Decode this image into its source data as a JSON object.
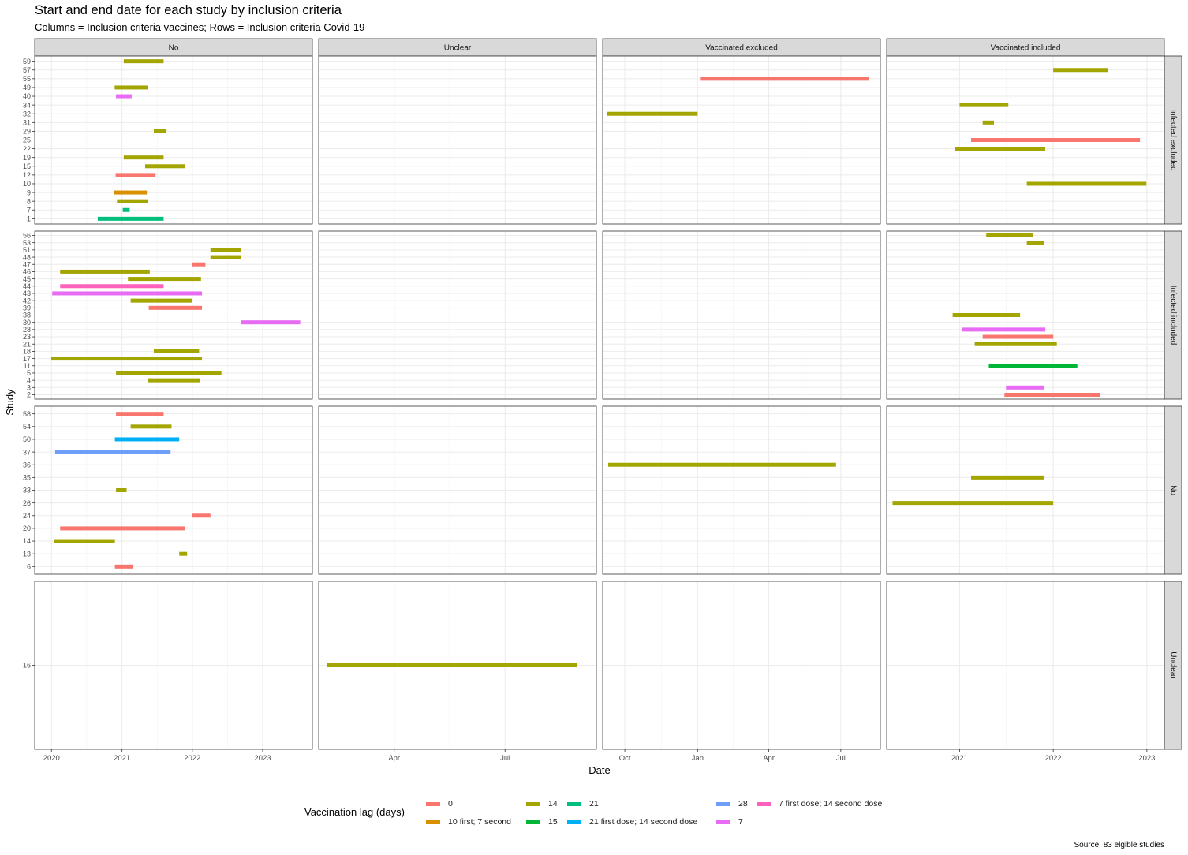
{
  "title": "Start and end date for each study by inclusion criteria",
  "subtitle": "Columns = Inclusion criteria vaccines; Rows = Inclusion criteria Covid-19",
  "caption": "Source: 83 elgible studies",
  "colors": {
    "0": "#F8766D",
    "10 first; 7 second": "#D89000",
    "14": "#A3A500",
    "15": "#00B636",
    "21": "#00BF7D",
    "21 first dose; 14 second dose": "#00B0F6",
    "28": "#6D9EF8",
    "7": "#E76BF3",
    "7 first dose; 14 second dose": "#FF62BC"
  },
  "chart_data": {
    "type": "timeline",
    "xlabel": "Date",
    "ylabel": "Study",
    "legend": {
      "title": "Vaccination lag (days)",
      "position": "bottom",
      "entries": [
        "0",
        "10 first; 7 second",
        "14",
        "15",
        "21",
        "21 first dose; 14 second dose",
        "28",
        "7",
        "7 first dose; 14 second dose"
      ]
    },
    "columns": [
      {
        "label": "No",
        "xlim": [
          "2019-10-06",
          "2023-09-16"
        ],
        "ticks": [
          {
            "date": "2020-01-01",
            "label": "2020"
          },
          {
            "date": "2021-01-01",
            "label": "2021"
          },
          {
            "date": "2022-01-01",
            "label": "2022"
          },
          {
            "date": "2023-01-01",
            "label": "2023"
          }
        ]
      },
      {
        "label": "Unclear",
        "xlim": [
          "2021-01-29",
          "2021-09-14"
        ],
        "ticks": [
          {
            "date": "2021-04-01",
            "label": "Apr"
          },
          {
            "date": "2021-07-01",
            "label": "Jul"
          }
        ]
      },
      {
        "label": "Vaccinated excluded",
        "xlim": [
          "2020-09-03",
          "2021-08-20"
        ],
        "ticks": [
          {
            "date": "2020-10-01",
            "label": "Oct"
          },
          {
            "date": "2021-01-01",
            "label": "Jan"
          },
          {
            "date": "2021-04-01",
            "label": "Apr"
          },
          {
            "date": "2021-07-01",
            "label": "Jul"
          }
        ]
      },
      {
        "label": "Vaccinated included",
        "xlim": [
          "2020-03-23",
          "2023-03-10"
        ],
        "ticks": [
          {
            "date": "2021-01-01",
            "label": "2021"
          },
          {
            "date": "2022-01-01",
            "label": "2022"
          },
          {
            "date": "2023-01-01",
            "label": "2023"
          }
        ]
      }
    ],
    "rows": [
      {
        "label": "Infected excluded",
        "studies": [
          "1",
          "7",
          "8",
          "9",
          "10",
          "12",
          "15",
          "19",
          "22",
          "25",
          "29",
          "31",
          "32",
          "34",
          "40",
          "49",
          "55",
          "57",
          "59"
        ]
      },
      {
        "label": "Infected included",
        "studies": [
          "2",
          "3",
          "4",
          "5",
          "11",
          "17",
          "18",
          "21",
          "23",
          "28",
          "30",
          "38",
          "39",
          "42",
          "43",
          "44",
          "45",
          "46",
          "47",
          "48",
          "51",
          "53",
          "56"
        ]
      },
      {
        "label": "No",
        "studies": [
          "6",
          "13",
          "14",
          "20",
          "24",
          "26",
          "33",
          "35",
          "36",
          "37",
          "50",
          "54",
          "58"
        ]
      },
      {
        "label": "Unclear",
        "studies": [
          "16"
        ]
      }
    ],
    "bars": [
      {
        "row": 0,
        "col": 0,
        "study": "59",
        "start": "2021-01-10",
        "end": "2021-08-05",
        "lag": "14"
      },
      {
        "row": 0,
        "col": 0,
        "study": "49",
        "start": "2020-11-24",
        "end": "2021-05-15",
        "lag": "14"
      },
      {
        "row": 0,
        "col": 0,
        "study": "40",
        "start": "2020-12-01",
        "end": "2021-02-20",
        "lag": "7"
      },
      {
        "row": 0,
        "col": 0,
        "study": "29",
        "start": "2021-06-15",
        "end": "2021-08-20",
        "lag": "14"
      },
      {
        "row": 0,
        "col": 0,
        "study": "19",
        "start": "2021-01-10",
        "end": "2021-08-05",
        "lag": "14"
      },
      {
        "row": 0,
        "col": 0,
        "study": "15",
        "start": "2021-05-01",
        "end": "2021-11-26",
        "lag": "14"
      },
      {
        "row": 0,
        "col": 0,
        "study": "12",
        "start": "2020-11-29",
        "end": "2021-06-24",
        "lag": "0"
      },
      {
        "row": 0,
        "col": 0,
        "study": "9",
        "start": "2020-11-19",
        "end": "2021-05-10",
        "lag": "10 first; 7 second"
      },
      {
        "row": 0,
        "col": 0,
        "study": "8",
        "start": "2020-12-06",
        "end": "2021-05-15",
        "lag": "14"
      },
      {
        "row": 0,
        "col": 0,
        "study": "7",
        "start": "2021-01-05",
        "end": "2021-02-10",
        "lag": "21"
      },
      {
        "row": 0,
        "col": 0,
        "study": "1",
        "start": "2020-08-28",
        "end": "2021-08-05",
        "lag": "21"
      },
      {
        "row": 0,
        "col": 2,
        "study": "55",
        "start": "2021-01-05",
        "end": "2021-08-05",
        "lag": "0"
      },
      {
        "row": 0,
        "col": 2,
        "study": "32",
        "start": "2020-09-08",
        "end": "2021-01-01",
        "lag": "14"
      },
      {
        "row": 0,
        "col": 3,
        "study": "57",
        "start": "2022-01-01",
        "end": "2022-08-01",
        "lag": "14"
      },
      {
        "row": 0,
        "col": 3,
        "study": "34",
        "start": "2021-01-01",
        "end": "2021-07-10",
        "lag": "14"
      },
      {
        "row": 0,
        "col": 3,
        "study": "31",
        "start": "2021-04-01",
        "end": "2021-05-15",
        "lag": "14"
      },
      {
        "row": 0,
        "col": 3,
        "study": "25",
        "start": "2021-02-15",
        "end": "2022-12-05",
        "lag": "0"
      },
      {
        "row": 0,
        "col": 3,
        "study": "22",
        "start": "2020-12-15",
        "end": "2021-12-01",
        "lag": "14"
      },
      {
        "row": 0,
        "col": 3,
        "study": "10",
        "start": "2021-09-20",
        "end": "2022-12-30",
        "lag": "14"
      },
      {
        "row": 1,
        "col": 0,
        "study": "51",
        "start": "2022-04-05",
        "end": "2022-09-10",
        "lag": "14"
      },
      {
        "row": 1,
        "col": 0,
        "study": "48",
        "start": "2022-04-05",
        "end": "2022-09-10",
        "lag": "14"
      },
      {
        "row": 1,
        "col": 0,
        "study": "47",
        "start": "2022-01-01",
        "end": "2022-03-10",
        "lag": "0"
      },
      {
        "row": 1,
        "col": 0,
        "study": "46",
        "start": "2020-02-15",
        "end": "2021-05-25",
        "lag": "14"
      },
      {
        "row": 1,
        "col": 0,
        "study": "45",
        "start": "2021-02-01",
        "end": "2022-02-15",
        "lag": "14"
      },
      {
        "row": 1,
        "col": 0,
        "study": "44",
        "start": "2020-02-15",
        "end": "2021-08-05",
        "lag": "7 first dose; 14 second dose"
      },
      {
        "row": 1,
        "col": 0,
        "study": "43",
        "start": "2020-01-05",
        "end": "2022-02-20",
        "lag": "7"
      },
      {
        "row": 1,
        "col": 0,
        "study": "42",
        "start": "2021-02-15",
        "end": "2022-01-01",
        "lag": "14"
      },
      {
        "row": 1,
        "col": 0,
        "study": "39",
        "start": "2021-05-20",
        "end": "2022-02-20",
        "lag": "0"
      },
      {
        "row": 1,
        "col": 0,
        "study": "30",
        "start": "2022-09-10",
        "end": "2023-07-15",
        "lag": "7"
      },
      {
        "row": 1,
        "col": 0,
        "study": "18",
        "start": "2021-06-15",
        "end": "2022-02-05",
        "lag": "14"
      },
      {
        "row": 1,
        "col": 0,
        "study": "17",
        "start": "2019-12-31",
        "end": "2022-02-20",
        "lag": "14"
      },
      {
        "row": 1,
        "col": 0,
        "study": "5",
        "start": "2020-12-01",
        "end": "2022-06-01",
        "lag": "14"
      },
      {
        "row": 1,
        "col": 0,
        "study": "4",
        "start": "2021-05-15",
        "end": "2022-02-10",
        "lag": "14"
      },
      {
        "row": 1,
        "col": 3,
        "study": "56",
        "start": "2021-04-15",
        "end": "2021-10-15",
        "lag": "14"
      },
      {
        "row": 1,
        "col": 3,
        "study": "53",
        "start": "2021-09-20",
        "end": "2021-11-25",
        "lag": "14"
      },
      {
        "row": 1,
        "col": 3,
        "study": "38",
        "start": "2020-12-05",
        "end": "2021-08-25",
        "lag": "14"
      },
      {
        "row": 1,
        "col": 3,
        "study": "28",
        "start": "2021-01-10",
        "end": "2021-12-01",
        "lag": "7"
      },
      {
        "row": 1,
        "col": 3,
        "study": "23",
        "start": "2021-04-01",
        "end": "2022-01-01",
        "lag": "0"
      },
      {
        "row": 1,
        "col": 3,
        "study": "21",
        "start": "2021-03-01",
        "end": "2022-01-15",
        "lag": "14"
      },
      {
        "row": 1,
        "col": 3,
        "study": "11",
        "start": "2021-04-25",
        "end": "2022-04-05",
        "lag": "15"
      },
      {
        "row": 1,
        "col": 3,
        "study": "3",
        "start": "2021-07-01",
        "end": "2021-11-25",
        "lag": "7"
      },
      {
        "row": 1,
        "col": 3,
        "study": "2",
        "start": "2021-06-25",
        "end": "2022-07-01",
        "lag": "0"
      },
      {
        "row": 2,
        "col": 0,
        "study": "58",
        "start": "2020-12-01",
        "end": "2021-08-05",
        "lag": "0"
      },
      {
        "row": 2,
        "col": 0,
        "study": "54",
        "start": "2021-02-15",
        "end": "2021-09-15",
        "lag": "14"
      },
      {
        "row": 2,
        "col": 0,
        "study": "50",
        "start": "2020-11-25",
        "end": "2021-10-25",
        "lag": "21 first dose; 14 second dose"
      },
      {
        "row": 2,
        "col": 0,
        "study": "37",
        "start": "2020-01-20",
        "end": "2021-09-10",
        "lag": "28"
      },
      {
        "row": 2,
        "col": 0,
        "study": "33",
        "start": "2020-12-01",
        "end": "2021-01-25",
        "lag": "14"
      },
      {
        "row": 2,
        "col": 0,
        "study": "24",
        "start": "2022-01-01",
        "end": "2022-04-05",
        "lag": "0"
      },
      {
        "row": 2,
        "col": 0,
        "study": "20",
        "start": "2020-02-15",
        "end": "2021-11-25",
        "lag": "0"
      },
      {
        "row": 2,
        "col": 0,
        "study": "14",
        "start": "2020-01-15",
        "end": "2020-11-25",
        "lag": "14"
      },
      {
        "row": 2,
        "col": 0,
        "study": "13",
        "start": "2021-10-25",
        "end": "2021-12-05",
        "lag": "14"
      },
      {
        "row": 2,
        "col": 0,
        "study": "6",
        "start": "2020-11-25",
        "end": "2021-03-01",
        "lag": "0"
      },
      {
        "row": 2,
        "col": 2,
        "study": "36",
        "start": "2020-09-10",
        "end": "2021-06-25",
        "lag": "14"
      },
      {
        "row": 2,
        "col": 3,
        "study": "35",
        "start": "2021-02-15",
        "end": "2021-11-25",
        "lag": "14"
      },
      {
        "row": 2,
        "col": 3,
        "study": "26",
        "start": "2020-04-15",
        "end": "2022-01-01",
        "lag": "14"
      },
      {
        "row": 3,
        "col": 1,
        "study": "16",
        "start": "2021-02-05",
        "end": "2021-08-29",
        "lag": "14"
      }
    ]
  }
}
